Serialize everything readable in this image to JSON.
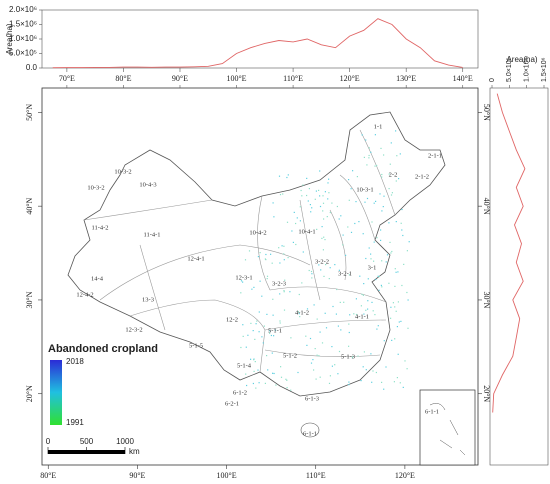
{
  "top_chart": {
    "type": "line",
    "ylabel": "Area(ha)",
    "color": "#e06666",
    "x": [
      67.5,
      70,
      72.5,
      75,
      77.5,
      80,
      82.5,
      85,
      87.5,
      90,
      92.5,
      95,
      97.5,
      100,
      102.5,
      105,
      107.5,
      110,
      112.5,
      115,
      117.5,
      120,
      122.5,
      125,
      127.5,
      130,
      132.5,
      135,
      137.5,
      140
    ],
    "values": [
      10000,
      15000,
      15000,
      20000,
      20000,
      30000,
      30000,
      25000,
      30000,
      30000,
      40000,
      60000,
      150000,
      500000,
      700000,
      850000,
      950000,
      900000,
      1000000,
      800000,
      700000,
      1100000,
      1300000,
      1700000,
      1500000,
      1000000,
      700000,
      250000,
      100000,
      20000
    ],
    "xlim": [
      65.6,
      142.7
    ],
    "xticks": [
      {
        "value": 70,
        "label": "70°E"
      },
      {
        "value": 80,
        "label": "80°E"
      },
      {
        "value": 90,
        "label": "90°E"
      },
      {
        "value": 100,
        "label": "100°E"
      },
      {
        "value": 110,
        "label": "110°E"
      },
      {
        "value": 120,
        "label": "120°E"
      },
      {
        "value": 130,
        "label": "130°E"
      },
      {
        "value": 140,
        "label": "140°E"
      }
    ],
    "ylim": [
      0,
      2000000
    ],
    "yticks": [
      {
        "value": 0,
        "label": "0.0"
      },
      {
        "value": 500000,
        "label": "5.0×10⁵"
      },
      {
        "value": 1000000,
        "label": "1.0×10⁶"
      },
      {
        "value": 1500000,
        "label": "1.5×10⁶"
      },
      {
        "value": 2000000,
        "label": "2.0×10⁶"
      }
    ]
  },
  "right_chart": {
    "type": "line",
    "xlabel": "Area(ha)",
    "color": "#e06666",
    "y": [
      18,
      20,
      22,
      24,
      26,
      28,
      30,
      32,
      34,
      36,
      38,
      40,
      42,
      44,
      46,
      48,
      50,
      52
    ],
    "values": [
      20000,
      50000,
      300000,
      600000,
      700000,
      800000,
      600000,
      900000,
      700000,
      850000,
      650000,
      900000,
      700000,
      950000,
      700000,
      500000,
      300000,
      150000
    ],
    "xlim": [
      0,
      1500000
    ],
    "xticks": [
      0,
      {
        "value": 500000,
        "label": "5.0×10⁵"
      },
      {
        "value": 1000000,
        "label": "1.0×10⁶"
      },
      {
        "value": 1500000,
        "label": "1.5×10⁶"
      }
    ]
  },
  "map": {
    "ylim": [
      12.4,
      52.6
    ],
    "lat_ticks": [
      {
        "value": 20,
        "label": "20°N"
      },
      {
        "value": 30,
        "label": "30°N"
      },
      {
        "value": 40,
        "label": "40°N"
      },
      {
        "value": 50,
        "label": "50°N"
      }
    ],
    "xlim": [
      79.3,
      128.2
    ],
    "lon_ticks": [
      {
        "value": 80,
        "label": "80°E"
      },
      {
        "value": 90,
        "label": "90°E"
      },
      {
        "value": 100,
        "label": "100°E"
      },
      {
        "value": 110,
        "label": "110°E"
      },
      {
        "value": 120,
        "label": "120°E"
      }
    ],
    "regions": [
      "1-1",
      "2-1-1",
      "2-2",
      "2-1-2",
      "10-3-1",
      "10-3-2",
      "10-4-3",
      "10-3-2",
      "11-4-2",
      "11-4-1",
      "10-4-2",
      "10-4-1",
      "12-4-1",
      "12-3-1",
      "3-2-2",
      "3-2-1",
      "3-1",
      "14-4",
      "13-3",
      "12-4-2",
      "3-2-3",
      "4-1-2",
      "4-1-1",
      "12-3-2",
      "12-2",
      "5-1-1",
      "5-1-5",
      "5-1-2",
      "5-1-3",
      "5-1-4",
      "6-1-2",
      "6-1-3",
      "6-2-1",
      "6-1-1",
      "6-1-1"
    ],
    "legend": {
      "title": "Abandoned cropland",
      "max": "2018",
      "min": "1991"
    },
    "scale": {
      "ticks": [
        0,
        500,
        1000
      ],
      "unit": "km"
    }
  }
}
